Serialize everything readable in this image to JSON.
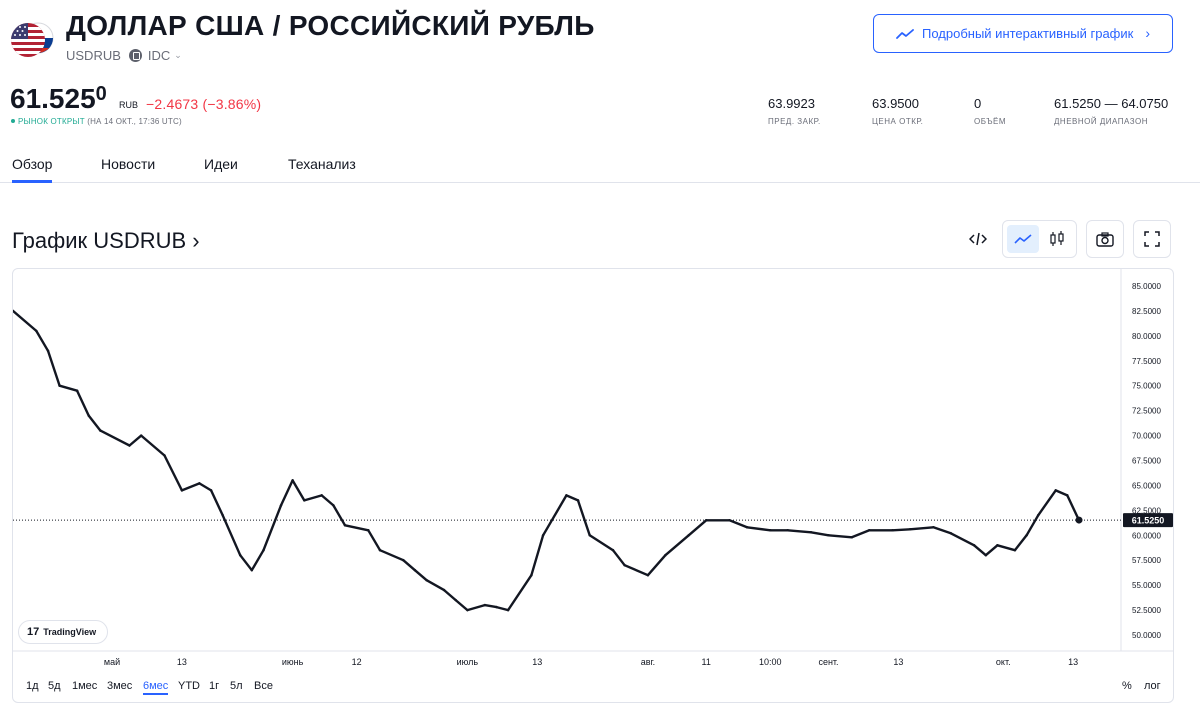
{
  "header": {
    "title": "ДОЛЛАР США / РОССИЙСКИЙ РУБЛЬ",
    "symbol": "USDRUB",
    "exchange": "IDC",
    "detail_button": "Подробный интерактивный график",
    "price_main": "61.525",
    "price_last_digit": "0",
    "currency": "RUB",
    "change": "−2.4673 (−3.86%)",
    "market_status": "РЫНОК ОТКРЫТ",
    "market_time": "(НА 14 ОКТ., 17:36 UTC)",
    "stats": [
      {
        "value": "63.9923",
        "label": "ПРЕД. ЗАКР."
      },
      {
        "value": "63.9500",
        "label": "ЦЕНА ОТКР."
      },
      {
        "value": "0",
        "label": "ОБЪЁМ"
      },
      {
        "value": "61.5250 — 64.0750",
        "label": "ДНЕВНОЙ ДИАПАЗОН"
      }
    ]
  },
  "tabs": [
    "Обзор",
    "Новости",
    "Идеи",
    "Теханализ"
  ],
  "chart_section": {
    "title": "График USDRUB ›",
    "logo_text": "TradingView"
  },
  "ranges": [
    "1д",
    "5д",
    "1мес",
    "3мес",
    "6мес",
    "YTD",
    "1г",
    "5л",
    "Все"
  ],
  "active_range": "6мес",
  "scale_options": [
    "%",
    "лог"
  ],
  "icons": {
    "embed": "code-icon",
    "line": "line-chart-icon",
    "candles": "candles-icon",
    "snapshot": "camera-icon",
    "fullscreen": "fullscreen-icon"
  },
  "colors": {
    "accent": "#2962ff",
    "negative": "#f23645",
    "positive": "#22ab94",
    "line": "#131722"
  },
  "chart_data": {
    "type": "line",
    "ylim": [
      50,
      85
    ],
    "yticks": [
      "85.0000",
      "82.5000",
      "80.0000",
      "77.5000",
      "75.0000",
      "72.5000",
      "70.0000",
      "67.5000",
      "65.0000",
      "62.5000",
      "60.0000",
      "57.5000",
      "55.0000",
      "52.5000",
      "50.0000"
    ],
    "xticks": [
      "май",
      "13",
      "июнь",
      "12",
      "июль",
      "13",
      "авг.",
      "11",
      "10:00",
      "сент.",
      "13",
      "окт.",
      "13"
    ],
    "last_value": "61.5250",
    "x": [
      "2022-04-14",
      "2022-04-18",
      "2022-04-20",
      "2022-04-22",
      "2022-04-25",
      "2022-04-27",
      "2022-04-29",
      "2022-05-04",
      "2022-05-06",
      "2022-05-10",
      "2022-05-13",
      "2022-05-16",
      "2022-05-18",
      "2022-05-20",
      "2022-05-23",
      "2022-05-25",
      "2022-05-27",
      "2022-05-30",
      "2022-06-01",
      "2022-06-03",
      "2022-06-06",
      "2022-06-08",
      "2022-06-10",
      "2022-06-14",
      "2022-06-16",
      "2022-06-20",
      "2022-06-22",
      "2022-06-24",
      "2022-06-27",
      "2022-06-29",
      "2022-07-01",
      "2022-07-04",
      "2022-07-06",
      "2022-07-08",
      "2022-07-12",
      "2022-07-14",
      "2022-07-18",
      "2022-07-20",
      "2022-07-22",
      "2022-07-26",
      "2022-07-28",
      "2022-08-01",
      "2022-08-04",
      "2022-08-08",
      "2022-08-11",
      "2022-08-15",
      "2022-08-18",
      "2022-08-22",
      "2022-08-25",
      "2022-08-29",
      "2022-09-01",
      "2022-09-05",
      "2022-09-08",
      "2022-09-12",
      "2022-09-15",
      "2022-09-19",
      "2022-09-22",
      "2022-09-26",
      "2022-09-28",
      "2022-09-30",
      "2022-10-03",
      "2022-10-05",
      "2022-10-07",
      "2022-10-10",
      "2022-10-12",
      "2022-10-14"
    ],
    "values": [
      82.5,
      80.5,
      78.5,
      75.0,
      74.5,
      72.0,
      70.5,
      69.0,
      70.0,
      68.0,
      64.5,
      65.2,
      64.5,
      62.0,
      58.0,
      56.5,
      58.5,
      63.0,
      65.5,
      63.5,
      64.0,
      63.0,
      61.0,
      60.5,
      58.5,
      57.5,
      56.5,
      55.5,
      54.5,
      53.5,
      52.5,
      53.0,
      52.8,
      52.5,
      56.0,
      60.0,
      64.0,
      63.5,
      60.0,
      58.5,
      57.0,
      56.0,
      58.0,
      60.0,
      61.5,
      61.5,
      60.8,
      60.5,
      60.5,
      60.3,
      60.0,
      59.8,
      60.5,
      60.5,
      60.6,
      60.8,
      60.2,
      59.0,
      58.0,
      59.0,
      58.5,
      60.0,
      62.0,
      64.5,
      64.0,
      61.5
    ]
  }
}
